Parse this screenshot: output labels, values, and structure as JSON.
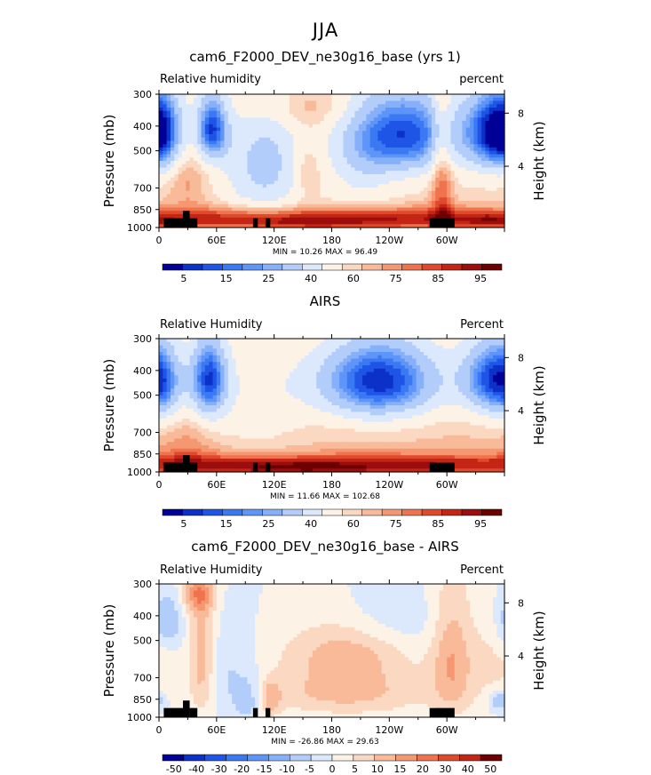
{
  "figure": {
    "title": "JJA"
  },
  "panels": [
    {
      "title": "cam6_F2000_DEV_ne30g16_base (yrs 1)",
      "left_label": "Relative humidity",
      "right_label": "percent",
      "stats": "MIN =   10.26   MAX =   96.49",
      "colorbar_labels": [
        "5",
        "15",
        "25",
        "40",
        "60",
        "75",
        "85",
        "95"
      ]
    },
    {
      "title": "AIRS",
      "left_label": "Relative Humidity",
      "right_label": "Percent",
      "stats": "MIN =   11.66   MAX =  102.68",
      "colorbar_labels": [
        "5",
        "15",
        "25",
        "40",
        "60",
        "75",
        "85",
        "95"
      ]
    },
    {
      "title": "cam6_F2000_DEV_ne30g16_base - AIRS",
      "left_label": "Relative Humidity",
      "right_label": "Percent",
      "stats": "MIN =  -26.86   MAX =   29.63",
      "colorbar_labels": [
        "-50",
        "-40",
        "-30",
        "-20",
        "-15",
        "-10",
        "-5",
        "0",
        "5",
        "10",
        "15",
        "20",
        "30",
        "40",
        "50"
      ]
    }
  ],
  "chart_data": [
    {
      "type": "heatmap",
      "title": "cam6_F2000_DEV_ne30g16_base (yrs 1)",
      "ylabel": "Pressure (mb)",
      "ylabel_right": "Height (km)",
      "x_ticks": [
        "0",
        "60E",
        "120E",
        "180",
        "120W",
        "60W"
      ],
      "x_values": [
        0,
        60,
        120,
        180,
        240,
        300
      ],
      "xlim": [
        0,
        360
      ],
      "y_ticks": [
        "300",
        "400",
        "500",
        "700",
        "850",
        "1000"
      ],
      "y_values": [
        300,
        400,
        500,
        700,
        850,
        1000
      ],
      "ylim": [
        1000,
        300
      ],
      "y_scale": "log",
      "y_right_ticks": [
        "4",
        "8"
      ],
      "y_right_values": [
        4,
        8
      ],
      "levels": [
        5,
        10,
        15,
        20,
        25,
        30,
        40,
        50,
        60,
        65,
        70,
        75,
        80,
        85,
        90,
        95
      ],
      "min": 10.26,
      "max": 96.49,
      "colors": [
        "#000096",
        "#0b31c8",
        "#1f55e6",
        "#3b78f4",
        "#5e95f8",
        "#86b0fa",
        "#b3cdfb",
        "#dce9fc",
        "#fdf2e6",
        "#fbd8c1",
        "#f8ba99",
        "#f59872",
        "#ee734e",
        "#e04a2c",
        "#c42515",
        "#9c0d0d",
        "#6e0000"
      ],
      "fields": [
        {
          "base": 62,
          "blobs": [
            {
              "x": 258,
              "p": 430,
              "sx": 40,
              "sp": 120,
              "a": -50
            },
            {
              "x": 345,
              "p": 420,
              "sx": 20,
              "sp": 110,
              "a": -45
            },
            {
              "x": 5,
              "p": 420,
              "sx": 15,
              "sp": 110,
              "a": -38
            },
            {
              "x": 55,
              "p": 410,
              "sx": 12,
              "sp": 90,
              "a": -50
            },
            {
              "x": 110,
              "p": 560,
              "sx": 30,
              "sp": 220,
              "a": -26
            },
            {
              "x": 210,
              "p": 540,
              "sx": 25,
              "sp": 200,
              "a": -14
            },
            {
              "x": 155,
              "p": 600,
              "sx": 10,
              "sp": 110,
              "a": 12
            },
            {
              "x": 150,
              "p": 340,
              "sx": 45,
              "sp": 50,
              "a": 10
            },
            {
              "x": 295,
              "p": 600,
              "sx": 8,
              "sp": 350,
              "a": 20
            },
            {
              "x": 30,
              "p": 640,
              "sx": 15,
              "sp": 150,
              "a": 10
            },
            {
              "x": 180,
              "p": 920,
              "sx": 280,
              "sp": 65,
              "a": 28
            },
            {
              "x": 150,
              "p": 960,
              "sx": 60,
              "sp": 35,
              "a": 10
            },
            {
              "x": 345,
              "p": 950,
              "sx": 20,
              "sp": 40,
              "a": 12
            }
          ]
        },
        {
          "base": 66,
          "blobs": [
            {
              "x": 230,
              "p": 440,
              "sx": 45,
              "sp": 120,
              "a": -55
            },
            {
              "x": 345,
              "p": 430,
              "sx": 22,
              "sp": 110,
              "a": -45
            },
            {
              "x": 52,
              "p": 430,
              "sx": 14,
              "sp": 120,
              "a": -50
            },
            {
              "x": 5,
              "p": 450,
              "sx": 14,
              "sp": 120,
              "a": -25
            },
            {
              "x": 100,
              "p": 550,
              "sx": 40,
              "sp": 200,
              "a": -10
            },
            {
              "x": 180,
              "p": 430,
              "sx": 120,
              "sp": 100,
              "a": -5
            },
            {
              "x": 180,
              "p": 940,
              "sx": 300,
              "sp": 65,
              "a": 26
            },
            {
              "x": 150,
              "p": 970,
              "sx": 50,
              "sp": 35,
              "a": 10
            },
            {
              "x": 30,
              "p": 820,
              "sx": 20,
              "sp": 150,
              "a": 8
            }
          ]
        },
        {
          "base": 0,
          "blobs": [
            {
              "x": 8,
              "p": 420,
              "sx": 12,
              "sp": 80,
              "a": -12
            },
            {
              "x": 45,
              "p": 600,
              "sx": 10,
              "sp": 250,
              "a": 14
            },
            {
              "x": 40,
              "p": 330,
              "sx": 12,
              "sp": 40,
              "a": 15
            },
            {
              "x": 70,
              "p": 700,
              "sx": 20,
              "sp": 200,
              "a": -6
            },
            {
              "x": 95,
              "p": 850,
              "sx": 12,
              "sp": 120,
              "a": -8
            },
            {
              "x": 115,
              "p": 850,
              "sx": 8,
              "sp": 100,
              "a": 12
            },
            {
              "x": 195,
              "p": 550,
              "sx": 45,
              "sp": 110,
              "a": 12
            },
            {
              "x": 195,
              "p": 800,
              "sx": 60,
              "sp": 120,
              "a": 12
            },
            {
              "x": 240,
              "p": 420,
              "sx": 40,
              "sp": 80,
              "a": -5
            },
            {
              "x": 305,
              "p": 600,
              "sx": 15,
              "sp": 250,
              "a": 14
            },
            {
              "x": 350,
              "p": 620,
              "sx": 20,
              "sp": 200,
              "a": 6
            },
            {
              "x": 355,
              "p": 860,
              "sx": 8,
              "sp": 60,
              "a": -12
            }
          ]
        }
      ]
    },
    {
      "type": "heatmap",
      "title": "AIRS",
      "ylabel": "Pressure (mb)",
      "ylabel_right": "Height (km)",
      "x_ticks": [
        "0",
        "60E",
        "120E",
        "180",
        "120W",
        "60W"
      ],
      "x_values": [
        0,
        60,
        120,
        180,
        240,
        300
      ],
      "xlim": [
        0,
        360
      ],
      "y_ticks": [
        "300",
        "400",
        "500",
        "700",
        "850",
        "1000"
      ],
      "y_values": [
        300,
        400,
        500,
        700,
        850,
        1000
      ],
      "ylim": [
        1000,
        300
      ],
      "y_scale": "log",
      "y_right_ticks": [
        "4",
        "8"
      ],
      "y_right_values": [
        4,
        8
      ],
      "levels": [
        5,
        10,
        15,
        20,
        25,
        30,
        40,
        50,
        60,
        65,
        70,
        75,
        80,
        85,
        90,
        95
      ],
      "min": 11.66,
      "max": 102.68
    },
    {
      "type": "heatmap",
      "title": "cam6_F2000_DEV_ne30g16_base - AIRS",
      "ylabel": "Pressure (mb)",
      "ylabel_right": "Height (km)",
      "x_ticks": [
        "0",
        "60E",
        "120E",
        "180",
        "120W",
        "60W"
      ],
      "x_values": [
        0,
        60,
        120,
        180,
        240,
        300
      ],
      "xlim": [
        0,
        360
      ],
      "y_ticks": [
        "300",
        "400",
        "500",
        "700",
        "850",
        "1000"
      ],
      "y_values": [
        300,
        400,
        500,
        700,
        850,
        1000
      ],
      "ylim": [
        1000,
        300
      ],
      "y_scale": "log",
      "y_right_ticks": [
        "4",
        "8"
      ],
      "y_right_values": [
        4,
        8
      ],
      "levels": [
        -50,
        -40,
        -30,
        -20,
        -15,
        -10,
        -5,
        0,
        5,
        10,
        15,
        20,
        30,
        40,
        50
      ],
      "min": -26.86,
      "max": 29.63,
      "colors": [
        "#000096",
        "#0b31c8",
        "#1f55e6",
        "#3b78f4",
        "#5e95f8",
        "#86b0fa",
        "#b3cdfb",
        "#dce9fc",
        "#fdf2e6",
        "#fbd8c1",
        "#f8ba99",
        "#f59872",
        "#ee734e",
        "#e04a2c",
        "#c42515",
        "#6e0000"
      ]
    }
  ],
  "terrain": [
    {
      "x0": 5,
      "x1": 12,
      "p": 920
    },
    {
      "x0": 12,
      "x1": 25,
      "p": 920
    },
    {
      "x0": 25,
      "x1": 32,
      "p": 860
    },
    {
      "x0": 32,
      "x1": 40,
      "p": 920
    },
    {
      "x0": 98,
      "x1": 103,
      "p": 920
    },
    {
      "x0": 111,
      "x1": 116,
      "p": 920
    },
    {
      "x0": 282,
      "x1": 308,
      "p": 920
    }
  ]
}
